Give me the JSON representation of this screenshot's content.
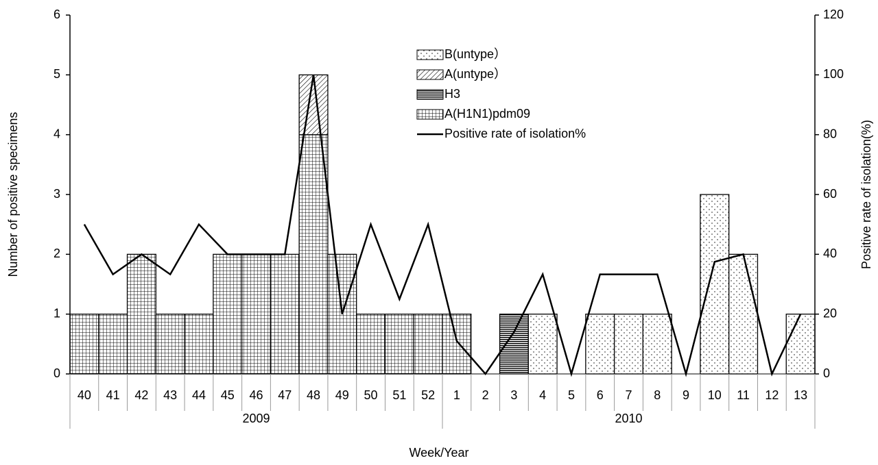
{
  "chart_data": {
    "type": "bar",
    "stacked": true,
    "y_label": "Number of positive specimens",
    "y2_label": "Positive rate of isolation(%)",
    "x_label": "Week/Year",
    "categories": [
      "40",
      "41",
      "42",
      "43",
      "44",
      "45",
      "46",
      "47",
      "48",
      "49",
      "50",
      "51",
      "52",
      "1",
      "2",
      "3",
      "4",
      "5",
      "6",
      "7",
      "8",
      "9",
      "10",
      "11",
      "12",
      "13"
    ],
    "groups": [
      {
        "label": "2009",
        "span": 13
      },
      {
        "label": "2010",
        "span": 13
      }
    ],
    "series": [
      {
        "name": "A(H1N1)pdm09",
        "color": "#000000",
        "pattern": "grid",
        "values": [
          1,
          1,
          2,
          1,
          1,
          2,
          2,
          2,
          4,
          2,
          1,
          1,
          1,
          1,
          0,
          0,
          0,
          0,
          0,
          0,
          0,
          0,
          0,
          0,
          0,
          0
        ]
      },
      {
        "name": "H3",
        "color": "#000000",
        "pattern": "horizontal",
        "values": [
          0,
          0,
          0,
          0,
          0,
          0,
          0,
          0,
          0,
          0,
          0,
          0,
          0,
          0,
          0,
          1,
          0,
          0,
          0,
          0,
          0,
          0,
          0,
          0,
          0,
          0
        ]
      },
      {
        "name": "A(untype）",
        "color": "#000000",
        "pattern": "diagonal",
        "values": [
          0,
          0,
          0,
          0,
          0,
          0,
          0,
          0,
          1,
          0,
          0,
          0,
          0,
          0,
          0,
          0,
          0,
          0,
          0,
          0,
          0,
          0,
          0,
          0,
          0,
          0
        ]
      },
      {
        "name": "B(untype）",
        "color": "#000000",
        "pattern": "dots",
        "values": [
          0,
          0,
          0,
          0,
          0,
          0,
          0,
          0,
          0,
          0,
          0,
          0,
          0,
          0,
          0,
          0,
          1,
          0,
          1,
          1,
          1,
          0,
          3,
          2,
          0,
          1
        ]
      },
      {
        "name": "Positive rate of isolation%",
        "color": "#000000",
        "type": "line",
        "axis": "y2",
        "values": [
          50,
          33.3,
          40,
          33.3,
          50,
          40,
          40,
          40,
          100,
          20,
          50,
          25,
          50,
          11,
          0,
          14,
          33.3,
          0,
          33.3,
          33.3,
          33.3,
          0,
          37.5,
          40,
          0,
          20
        ]
      }
    ],
    "legend_order": [
      3,
      2,
      1,
      0,
      4
    ],
    "ylim": [
      0,
      6
    ],
    "yticks": [
      0,
      1,
      2,
      3,
      4,
      5,
      6
    ],
    "y2lim": [
      0,
      120
    ],
    "y2ticks": [
      0,
      20,
      40,
      60,
      80,
      100,
      120
    ],
    "grid": false
  }
}
